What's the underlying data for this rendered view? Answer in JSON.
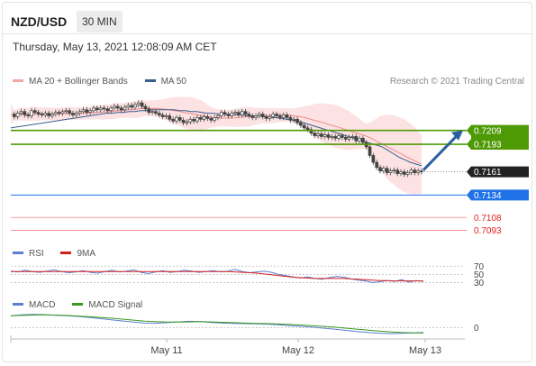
{
  "header": {
    "symbol": "NZD/USD",
    "timeframe": "30 MIN"
  },
  "datetime": "Thursday, May 13, 2021 12:08:09 AM CET",
  "credit": "Research © 2021 Trading Central",
  "legend": {
    "main": [
      {
        "label": "MA 20 + Bollinger Bands",
        "color": "#f4a6a6"
      },
      {
        "label": "MA 50",
        "color": "#3a5f8f"
      }
    ],
    "rsi": [
      {
        "label": "RSI",
        "color": "#5b7fd1"
      },
      {
        "label": "9MA",
        "color": "#d62020"
      }
    ],
    "macd": [
      {
        "label": "MACD",
        "color": "#5b7fd1"
      },
      {
        "label": "MACD Signal",
        "color": "#3a9a20"
      }
    ]
  },
  "colors": {
    "candle": "#444444",
    "target": "#4e9a06",
    "pivot": "#1f72e8",
    "support": "#e02020",
    "arrow": "#2c5fa0",
    "band": "#fbd6d6"
  },
  "chart_data": {
    "type": "candlestick",
    "x_labels": [
      "May 11",
      "May 12",
      "May 13"
    ],
    "ylim": [
      0.708,
      0.726
    ],
    "levels": [
      {
        "value": 0.7209,
        "label": "0.7209",
        "kind": "resistance"
      },
      {
        "value": 0.7193,
        "label": "0.7193",
        "kind": "resistance"
      },
      {
        "value": 0.7161,
        "label": "0.7161",
        "kind": "last"
      },
      {
        "value": 0.7134,
        "label": "0.7134",
        "kind": "pivot"
      },
      {
        "value": 0.7108,
        "label": "0.7108",
        "kind": "support"
      },
      {
        "value": 0.7093,
        "label": "0.7093",
        "kind": "support"
      }
    ],
    "close": [
      0.7228,
      0.7225,
      0.7229,
      0.7231,
      0.7227,
      0.7226,
      0.7232,
      0.723,
      0.7228,
      0.7227,
      0.7229,
      0.7226,
      0.7228,
      0.723,
      0.7229,
      0.7231,
      0.7232,
      0.7229,
      0.7227,
      0.7229,
      0.7231,
      0.7233,
      0.723,
      0.7232,
      0.7235,
      0.7233,
      0.7235,
      0.7234,
      0.7232,
      0.7235,
      0.7237,
      0.7235,
      0.7233,
      0.7236,
      0.7238,
      0.7236,
      0.7239,
      0.7241,
      0.7237,
      0.7234,
      0.723,
      0.7231,
      0.7229,
      0.7227,
      0.7225,
      0.7226,
      0.7222,
      0.722,
      0.7224,
      0.7221,
      0.7218,
      0.7219,
      0.7222,
      0.722,
      0.7224,
      0.7222,
      0.7225,
      0.7223,
      0.7221,
      0.7224,
      0.7226,
      0.723,
      0.7228,
      0.7226,
      0.7229,
      0.723,
      0.7227,
      0.7231,
      0.7228,
      0.7226,
      0.7224,
      0.7226,
      0.7228,
      0.7225,
      0.7223,
      0.7225,
      0.7228,
      0.7226,
      0.7224,
      0.7227,
      0.7224,
      0.7221,
      0.7222,
      0.7218,
      0.7215,
      0.7212,
      0.721,
      0.7206,
      0.7203,
      0.7205,
      0.7202,
      0.7204,
      0.7201,
      0.7202,
      0.72,
      0.7203,
      0.7201,
      0.7199,
      0.7201,
      0.7202,
      0.7197,
      0.72,
      0.7195,
      0.719,
      0.718,
      0.7172,
      0.7166,
      0.7162,
      0.7165,
      0.716,
      0.7162,
      0.7163,
      0.7159,
      0.7161,
      0.7158,
      0.716,
      0.7163,
      0.716,
      0.7162,
      0.7161
    ],
    "ma50": [
      0.7212,
      0.7213,
      0.7214,
      0.7215,
      0.7216,
      0.7217,
      0.7218,
      0.7219,
      0.722,
      0.7221,
      0.7222,
      0.7223,
      0.7224,
      0.7225,
      0.7226,
      0.7227,
      0.7228,
      0.7229,
      0.7229,
      0.723,
      0.723,
      0.7231,
      0.7231,
      0.7232,
      0.7232,
      0.7233,
      0.7233,
      0.7233,
      0.7233,
      0.7233,
      0.7232,
      0.7232,
      0.7231,
      0.7231,
      0.723,
      0.7229,
      0.7229,
      0.7228,
      0.7228,
      0.7227,
      0.7227,
      0.7227,
      0.7226,
      0.7226,
      0.7226,
      0.7225,
      0.7224,
      0.7224,
      0.7223,
      0.7222,
      0.7221,
      0.722,
      0.7218,
      0.7216,
      0.7214,
      0.7212,
      0.721,
      0.7208,
      0.7206,
      0.7204,
      0.7202,
      0.72,
      0.7198,
      0.7196,
      0.7194,
      0.7192,
      0.719,
      0.7186,
      0.7182,
      0.7178,
      0.7175,
      0.7172,
      0.717,
      0.7168
    ]
  },
  "rsi": {
    "levels": [
      70,
      50,
      30
    ],
    "values": [
      58,
      56,
      60,
      57,
      55,
      58,
      61,
      57,
      54,
      56,
      59,
      55,
      53,
      57,
      60,
      56,
      58,
      61,
      55,
      52,
      56,
      59,
      55,
      57,
      60,
      58,
      55,
      57,
      59,
      56,
      58,
      62,
      57,
      54,
      56,
      58,
      55,
      50,
      47,
      44,
      41,
      44,
      40,
      38,
      42,
      45,
      43,
      39,
      36,
      34,
      30,
      32,
      35,
      33,
      37,
      31,
      35,
      33
    ]
  },
  "rsi_ma": [
    57,
    57,
    57,
    57,
    57,
    57,
    57,
    57,
    57,
    57,
    57,
    57,
    57,
    57,
    57,
    57,
    57,
    57,
    57,
    57,
    57,
    57,
    57,
    57,
    57,
    57,
    57,
    57,
    57,
    57,
    57,
    56,
    55,
    54,
    53,
    51,
    49,
    47,
    45,
    43,
    42,
    41,
    40,
    40,
    40,
    40,
    40,
    39,
    38,
    37,
    36,
    35,
    35,
    34,
    34,
    34,
    34,
    34
  ],
  "macd": {
    "levels": [
      0
    ],
    "values": [
      6,
      6.5,
      6.7,
      6.6,
      6.3,
      6.0,
      5.7,
      5.2,
      4.6,
      4.0,
      3.4,
      2.8,
      2.3,
      2.2,
      2.5,
      2.9,
      3.2,
      3.0,
      2.6,
      2.3,
      2.1,
      2.0,
      1.9,
      1.7,
      1.4,
      1.0,
      0.6,
      0.2,
      -0.3,
      -0.8,
      -1.4,
      -2.0,
      -2.5,
      -2.9,
      -3.1,
      -3.0,
      -2.8,
      -2.5
    ]
  },
  "macd_signal": [
    6,
    6.2,
    6.4,
    6.5,
    6.4,
    6.2,
    5.9,
    5.6,
    5.2,
    4.8,
    4.3,
    3.8,
    3.3,
    3.0,
    2.8,
    2.8,
    2.9,
    3.0,
    2.9,
    2.7,
    2.5,
    2.3,
    2.1,
    2.0,
    1.8,
    1.6,
    1.3,
    1.0,
    0.6,
    0.2,
    -0.3,
    -0.8,
    -1.3,
    -1.8,
    -2.2,
    -2.5,
    -2.7,
    -2.8
  ]
}
